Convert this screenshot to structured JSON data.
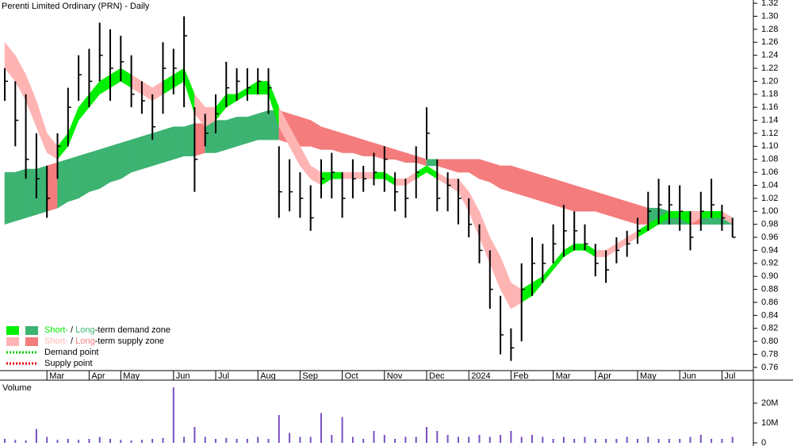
{
  "chart_data": [
    {
      "type": "ohlc",
      "title": "Perenti Limited Ordinary (PRN) - Daily",
      "categories": [
        null,
        null,
        null,
        null,
        "Mar",
        null,
        null,
        null,
        "Apr",
        null,
        null,
        "May",
        null,
        null,
        null,
        null,
        "Jun",
        null,
        null,
        null,
        "Jul",
        null,
        null,
        null,
        "Aug",
        null,
        null,
        null,
        "Sep",
        null,
        null,
        null,
        "Oct",
        null,
        null,
        null,
        "Nov",
        null,
        null,
        null,
        "Dec",
        null,
        null,
        null,
        "2024",
        null,
        null,
        null,
        "Feb",
        null,
        null,
        null,
        "Mar",
        null,
        null,
        null,
        "Apr",
        null,
        null,
        null,
        "May",
        null,
        null,
        null,
        "Jun",
        null,
        null,
        null,
        "Jul",
        null
      ],
      "high": [
        1.22,
        1.2,
        1.18,
        1.12,
        1.07,
        1.12,
        1.19,
        1.24,
        1.25,
        1.29,
        1.28,
        1.27,
        1.24,
        1.2,
        1.18,
        1.26,
        1.25,
        1.3,
        1.16,
        1.15,
        1.18,
        1.23,
        1.22,
        1.22,
        1.22,
        1.22,
        1.1,
        1.08,
        1.06,
        1.04,
        1.08,
        1.09,
        1.06,
        1.08,
        1.07,
        1.09,
        1.1,
        1.06,
        1.05,
        1.1,
        1.16,
        1.08,
        1.06,
        1.05,
        1.02,
        0.98,
        0.94,
        0.87,
        0.82,
        0.92,
        0.96,
        0.95,
        0.98,
        1.01,
        1.0,
        0.98,
        0.95,
        0.94,
        0.96,
        0.97,
        0.99,
        1.03,
        1.05,
        1.04,
        1.04,
        1.0,
        1.03,
        1.05,
        1.01,
        0.99
      ],
      "low": [
        1.17,
        1.1,
        1.05,
        1.02,
        0.99,
        1.05,
        1.1,
        1.17,
        1.16,
        1.2,
        1.17,
        1.2,
        1.16,
        1.15,
        1.11,
        1.15,
        1.18,
        1.16,
        1.03,
        1.1,
        1.12,
        1.16,
        1.17,
        1.17,
        1.18,
        1.15,
        0.99,
        1.0,
        0.99,
        0.97,
        1.02,
        1.02,
        0.99,
        1.02,
        1.03,
        1.04,
        1.03,
        1.0,
        0.99,
        1.02,
        1.08,
        1.0,
        1.0,
        0.98,
        0.96,
        0.92,
        0.85,
        0.78,
        0.77,
        0.8,
        0.87,
        0.89,
        0.92,
        0.93,
        0.94,
        0.94,
        0.9,
        0.89,
        0.92,
        0.93,
        0.95,
        0.97,
        0.98,
        0.98,
        0.97,
        0.94,
        0.97,
        0.99,
        0.97,
        0.96
      ],
      "close": [
        1.2,
        1.14,
        1.08,
        1.05,
        1.02,
        1.1,
        1.16,
        1.21,
        1.2,
        1.24,
        1.22,
        1.23,
        1.18,
        1.17,
        1.13,
        1.22,
        1.22,
        1.27,
        1.08,
        1.12,
        1.15,
        1.19,
        1.2,
        1.19,
        1.2,
        1.19,
        1.03,
        1.03,
        1.02,
        0.99,
        1.05,
        1.06,
        1.02,
        1.05,
        1.05,
        1.06,
        1.08,
        1.03,
        1.02,
        1.06,
        1.12,
        1.02,
        1.04,
        1.02,
        0.98,
        0.94,
        0.88,
        0.81,
        0.79,
        0.88,
        0.92,
        0.92,
        0.95,
        0.97,
        0.97,
        0.95,
        0.92,
        0.91,
        0.94,
        0.95,
        0.97,
        1.0,
        1.01,
        1.01,
        1.0,
        0.96,
        1.0,
        1.01,
        0.99,
        0.96
      ],
      "bands": [
        {
          "lower": [
            0.98,
            0.985,
            0.99,
            0.995,
            1.0,
            1.005,
            1.015,
            1.02,
            1.03,
            1.035,
            1.045,
            1.05,
            1.06,
            1.065,
            1.07,
            1.075,
            1.08,
            1.085,
            1.085,
            1.09,
            1.09,
            1.095,
            1.1,
            1.105,
            1.11,
            1.11,
            1.11,
            1.105,
            1.1,
            1.1,
            1.095,
            1.095,
            1.09,
            1.09,
            1.085,
            1.085,
            1.08,
            1.08,
            1.075,
            1.075,
            1.07,
            1.07,
            1.065,
            1.06,
            1.06,
            1.05,
            1.045,
            1.035,
            1.03,
            1.025,
            1.02,
            1.015,
            1.01,
            1.005,
            1.0,
            1.0,
            1.0,
            0.995,
            0.99,
            0.985,
            0.98,
            0.98,
            0.98,
            0.98,
            0.98,
            0.98,
            0.98,
            0.98,
            0.98,
            0.98
          ],
          "upper": [
            1.06,
            1.06,
            1.065,
            1.065,
            1.07,
            1.075,
            1.08,
            1.085,
            1.09,
            1.095,
            1.1,
            1.105,
            1.11,
            1.115,
            1.12,
            1.125,
            1.13,
            1.13,
            1.135,
            1.135,
            1.14,
            1.14,
            1.145,
            1.145,
            1.15,
            1.155,
            1.155,
            1.15,
            1.145,
            1.14,
            1.13,
            1.125,
            1.12,
            1.115,
            1.11,
            1.105,
            1.1,
            1.095,
            1.09,
            1.085,
            1.08,
            1.08,
            1.08,
            1.08,
            1.08,
            1.08,
            1.075,
            1.07,
            1.07,
            1.065,
            1.06,
            1.055,
            1.05,
            1.045,
            1.04,
            1.035,
            1.03,
            1.025,
            1.02,
            1.015,
            1.01,
            1.005,
            1.005,
            1.0,
            1.0,
            0.995,
            0.995,
            0.995,
            0.99,
            0.99
          ],
          "demand_color": "#3cb371",
          "supply_color": "#f47c7c"
        },
        {
          "lower": [
            1.22,
            1.2,
            1.17,
            1.13,
            1.09,
            1.08,
            1.1,
            1.14,
            1.16,
            1.18,
            1.19,
            1.2,
            1.19,
            1.18,
            1.17,
            1.18,
            1.19,
            1.2,
            1.15,
            1.13,
            1.14,
            1.16,
            1.17,
            1.18,
            1.18,
            1.18,
            1.13,
            1.1,
            1.07,
            1.05,
            1.04,
            1.05,
            1.05,
            1.05,
            1.05,
            1.05,
            1.05,
            1.04,
            1.04,
            1.05,
            1.06,
            1.05,
            1.04,
            1.03,
            1.0,
            0.96,
            0.92,
            0.88,
            0.85,
            0.86,
            0.87,
            0.89,
            0.91,
            0.93,
            0.94,
            0.94,
            0.93,
            0.93,
            0.94,
            0.95,
            0.96,
            0.97,
            0.98,
            0.99,
            0.99,
            0.98,
            0.99,
            0.99,
            0.99,
            0.98
          ],
          "upper": [
            1.26,
            1.24,
            1.21,
            1.17,
            1.12,
            1.1,
            1.12,
            1.16,
            1.18,
            1.2,
            1.21,
            1.22,
            1.21,
            1.2,
            1.19,
            1.2,
            1.21,
            1.22,
            1.18,
            1.16,
            1.16,
            1.18,
            1.18,
            1.19,
            1.2,
            1.2,
            1.16,
            1.13,
            1.1,
            1.07,
            1.06,
            1.06,
            1.06,
            1.06,
            1.06,
            1.06,
            1.06,
            1.05,
            1.05,
            1.06,
            1.07,
            1.06,
            1.05,
            1.05,
            1.03,
            1.0,
            0.96,
            0.93,
            0.89,
            0.88,
            0.89,
            0.9,
            0.92,
            0.94,
            0.95,
            0.95,
            0.94,
            0.94,
            0.95,
            0.96,
            0.97,
            0.98,
            0.99,
            1.0,
            1.0,
            1.0,
            1.0,
            1.0,
            1.0,
            0.99
          ],
          "demand_color": "#00ee00",
          "supply_color": "#ffb4b4"
        }
      ],
      "legend": [
        {
          "parts": [
            "Short-",
            " / ",
            "Long",
            "-term demand zone"
          ],
          "zone": "demand"
        },
        {
          "parts": [
            "Short-",
            " / ",
            "Long",
            "-term supply zone"
          ],
          "zone": "supply"
        },
        {
          "text": "Demand point",
          "color": "#00cc00"
        },
        {
          "text": "Supply point",
          "color": "#e00000"
        }
      ],
      "bar_color": "#000000",
      "ylim": [
        0.755,
        1.325
      ],
      "yticks": [
        0.76,
        0.78,
        {
          "value": 0.8,
          "label": "0.80"
        },
        0.82,
        0.84,
        0.86,
        0.88,
        {
          "value": 0.9,
          "label": "0.90"
        },
        0.92,
        0.94,
        0.96,
        0.98,
        {
          "value": 1.0,
          "label": "1.00"
        },
        1.02,
        1.04,
        1.06,
        1.08,
        {
          "value": 1.1,
          "label": "1.10"
        },
        1.12,
        1.14,
        1.16,
        1.18,
        {
          "value": 1.2,
          "label": "1.20"
        },
        1.22,
        1.24,
        1.26,
        1.28,
        {
          "value": 1.3,
          "label": "1.30"
        },
        1.32
      ],
      "grid": false
    },
    {
      "type": "bar",
      "title": "Volume",
      "title_color": "#5a2ea6",
      "color": "#7a4fc0",
      "values": [
        2000000,
        1500000,
        1200000,
        7000000,
        3000000,
        1500000,
        2000000,
        1500000,
        2000000,
        3000000,
        2000000,
        1500000,
        1200000,
        1500000,
        2000000,
        2500000,
        28000000,
        3000000,
        8000000,
        3000000,
        2000000,
        2500000,
        2000000,
        2000000,
        3000000,
        2000000,
        14000000,
        5000000,
        3000000,
        3000000,
        15000000,
        4000000,
        13000000,
        3000000,
        2000000,
        6000000,
        4000000,
        2000000,
        3000000,
        3000000,
        8000000,
        6000000,
        4000000,
        3000000,
        3000000,
        4000000,
        3000000,
        4000000,
        6000000,
        3000000,
        4000000,
        3000000,
        2000000,
        3000000,
        2000000,
        3000000,
        2000000,
        2000000,
        2000000,
        3000000,
        2000000,
        3000000,
        2000000,
        2000000,
        2000000,
        3000000,
        4000000,
        2000000,
        2000000,
        3000000
      ],
      "ylim": [
        0,
        31200000
      ],
      "yticks": [
        0,
        {
          "value": 10000000,
          "label": "10M"
        },
        {
          "value": 20000000,
          "label": "20M"
        }
      ],
      "grid": false
    }
  ]
}
